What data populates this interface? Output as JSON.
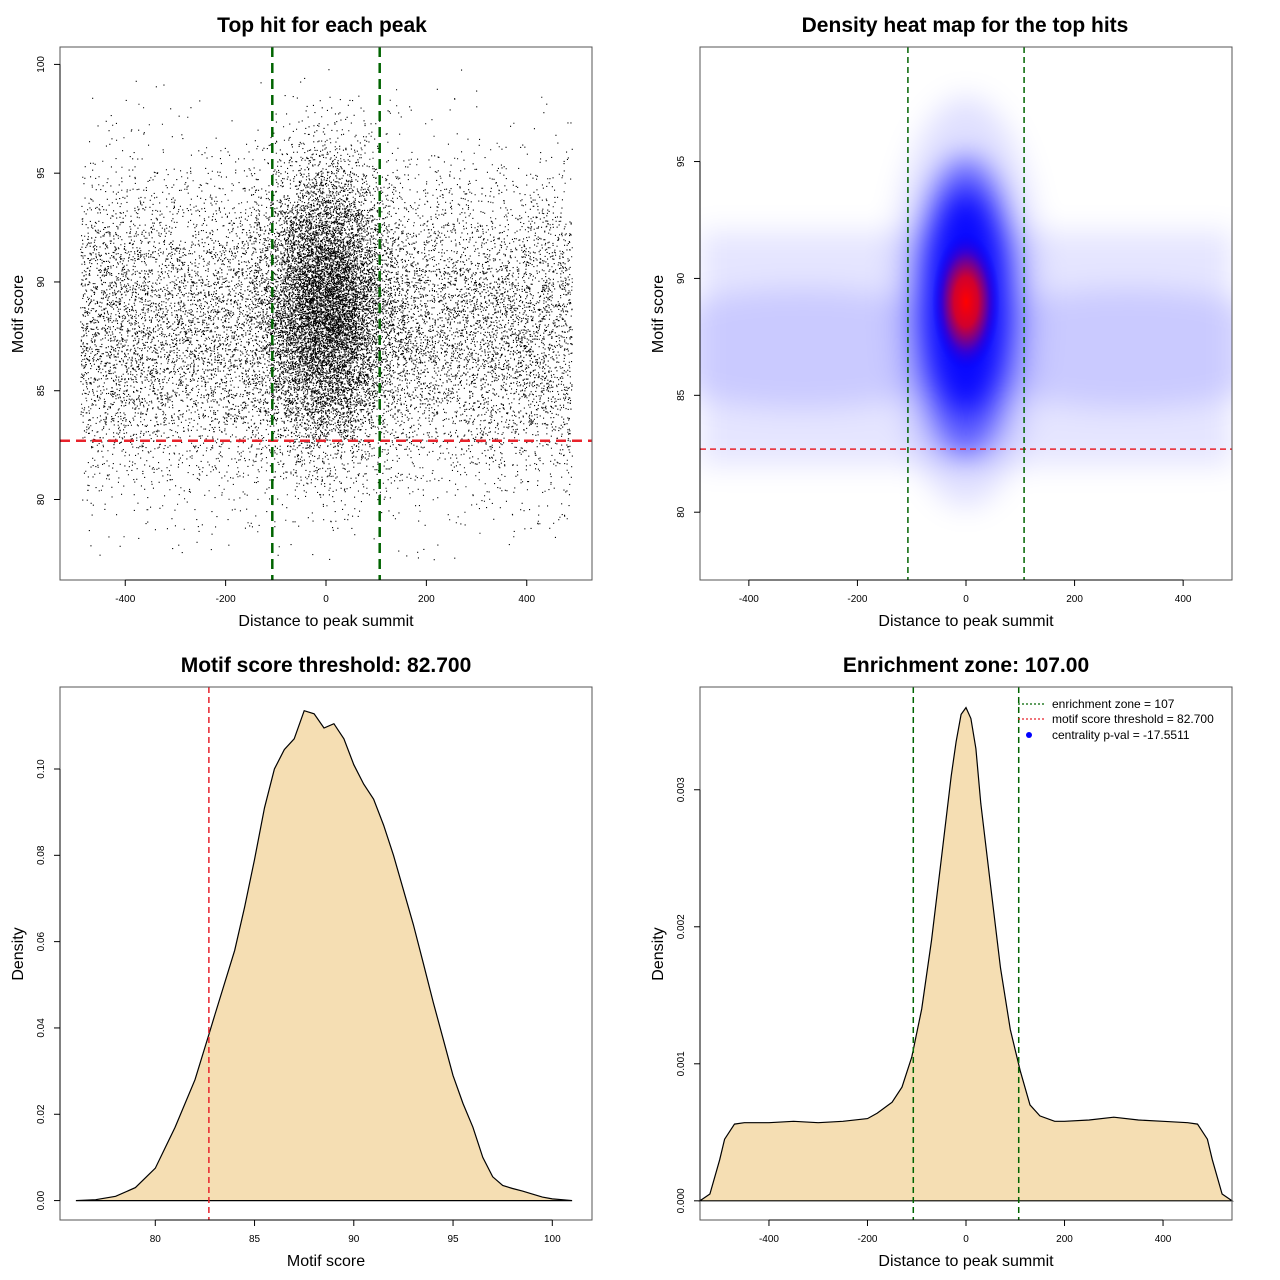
{
  "colors": {
    "density_fill": "#F5DEB3",
    "threshold_line": "#E8222B",
    "zone_line": "#006400",
    "heat_low": "#FFFFFF",
    "heat_mid": "#0000FF",
    "heat_high": "#FF0000",
    "point": "#000000",
    "centrality_marker": "#0000FF"
  },
  "chart_data": [
    {
      "type": "scatter",
      "title": "Top hit for each peak",
      "xlabel": "Distance to peak summit",
      "ylabel": "Motif score",
      "xlim": [
        -530,
        530
      ],
      "ylim": [
        76.3,
        100.8
      ],
      "xticks": [
        -400,
        -200,
        0,
        200,
        400
      ],
      "xtick_labels": [
        "-400",
        "-200",
        "0",
        "200",
        "400"
      ],
      "yticks": [
        80,
        85,
        90,
        95,
        100
      ],
      "ytick_labels": [
        "80",
        "85",
        "90",
        "95",
        "100"
      ],
      "x_range_of_points": [
        -490,
        490
      ],
      "y_range_of_points": [
        77.2,
        99.8
      ],
      "approx_point_count": 22000,
      "point_cloud_center": {
        "x": 0,
        "y": 89
      },
      "threshold_y": 82.7,
      "zone_x": [
        -107,
        107
      ]
    },
    {
      "type": "heatmap",
      "title": "Density heat map for the top hits",
      "xlabel": "Distance to peak summit",
      "ylabel": "Motif score",
      "xlim": [
        -490,
        490
      ],
      "ylim": [
        77.1,
        99.9
      ],
      "xticks": [
        -400,
        -200,
        0,
        200,
        400
      ],
      "xtick_labels": [
        "-400",
        "-200",
        "0",
        "200",
        "400"
      ],
      "yticks": [
        80,
        85,
        90,
        95
      ],
      "ytick_labels": [
        "80",
        "85",
        "90",
        "95"
      ],
      "density_peak": {
        "x": 0,
        "y": 89
      },
      "color_scale": [
        "white",
        "blue",
        "red"
      ],
      "threshold_y": 82.7,
      "zone_x": [
        -107,
        107
      ]
    },
    {
      "type": "area",
      "title": "Motif score threshold: 82.700",
      "xlabel": "Motif score",
      "ylabel": "Density",
      "xlim": [
        75.2,
        102.0
      ],
      "ylim": [
        -0.0045,
        0.119
      ],
      "xticks": [
        80,
        85,
        90,
        95,
        100
      ],
      "xtick_labels": [
        "80",
        "85",
        "90",
        "95",
        "100"
      ],
      "yticks": [
        0,
        0.02,
        0.04,
        0.06,
        0.08,
        0.1
      ],
      "ytick_labels": [
        "0.00",
        "0.02",
        "0.04",
        "0.06",
        "0.08",
        "0.10"
      ],
      "x": [
        76.0,
        77.0,
        78.0,
        79.0,
        80.0,
        81.0,
        82.0,
        82.7,
        83.0,
        84.0,
        84.5,
        85.0,
        85.5,
        86.0,
        86.5,
        87.0,
        87.5,
        88.0,
        88.5,
        89.0,
        89.5,
        90.0,
        90.5,
        91.0,
        91.5,
        92.0,
        92.5,
        93.0,
        93.5,
        94.0,
        94.5,
        95.0,
        95.5,
        96.0,
        96.5,
        97.0,
        97.5,
        98.0,
        98.5,
        99.0,
        99.5,
        100.0,
        100.5,
        101.0
      ],
      "values": [
        0.0,
        0.0002,
        0.001,
        0.003,
        0.0075,
        0.017,
        0.028,
        0.0385,
        0.043,
        0.058,
        0.068,
        0.079,
        0.091,
        0.1,
        0.1045,
        0.107,
        0.1135,
        0.1128,
        0.1095,
        0.1105,
        0.107,
        0.101,
        0.0965,
        0.093,
        0.087,
        0.08,
        0.072,
        0.064,
        0.055,
        0.046,
        0.0375,
        0.029,
        0.0225,
        0.017,
        0.01,
        0.0055,
        0.0035,
        0.0028,
        0.0022,
        0.0015,
        0.0008,
        0.0004,
        0.0002,
        0.0
      ],
      "threshold_x": 82.7
    },
    {
      "type": "area",
      "title": "Enrichment zone: 107.00",
      "xlabel": "Distance to peak summit",
      "ylabel": "Density",
      "xlim": [
        -540,
        540
      ],
      "ylim": [
        -0.00014,
        0.00375
      ],
      "xticks": [
        -400,
        -200,
        0,
        200,
        400
      ],
      "xtick_labels": [
        "-400",
        "-200",
        "0",
        "200",
        "400"
      ],
      "yticks": [
        0,
        0.001,
        0.002,
        0.003
      ],
      "ytick_labels": [
        "0.000",
        "0.001",
        "0.002",
        "0.003"
      ],
      "x": [
        -540,
        -520,
        -500,
        -490,
        -470,
        -450,
        -400,
        -350,
        -300,
        -250,
        -200,
        -180,
        -150,
        -130,
        -110,
        -90,
        -70,
        -50,
        -30,
        -20,
        -10,
        0,
        10,
        20,
        30,
        50,
        70,
        90,
        110,
        130,
        150,
        180,
        200,
        250,
        300,
        350,
        400,
        450,
        470,
        490,
        500,
        520,
        540
      ],
      "values": [
        0.0,
        5e-05,
        0.0003,
        0.00045,
        0.00056,
        0.00057,
        0.00057,
        0.00058,
        0.00057,
        0.00058,
        0.0006,
        0.00064,
        0.00072,
        0.00083,
        0.00105,
        0.0014,
        0.0019,
        0.0025,
        0.0031,
        0.00335,
        0.00355,
        0.0036,
        0.00352,
        0.0033,
        0.0029,
        0.0023,
        0.0017,
        0.00125,
        0.00095,
        0.0007,
        0.00062,
        0.00058,
        0.00058,
        0.00059,
        0.00061,
        0.00059,
        0.00058,
        0.00057,
        0.00056,
        0.00045,
        0.0003,
        5e-05,
        0.0
      ],
      "zone_x": [
        -107,
        107
      ],
      "legend": {
        "position": "top-right",
        "zone": "enrichment zone = 107",
        "threshold": "motif score threshold = 82.700",
        "centrality": "centrality p-val = -17.5511"
      }
    }
  ]
}
